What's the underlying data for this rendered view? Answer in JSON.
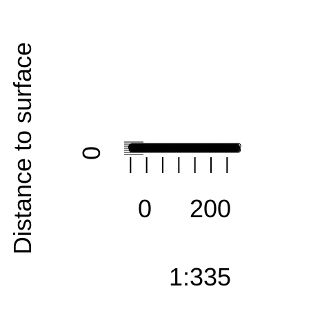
{
  "chart_data": {
    "type": "scatter",
    "ylabel": "Distance to surface",
    "xlabel": "1:335",
    "xlim": [
      -20,
      400
    ],
    "ylim": [
      -1,
      1
    ],
    "x_ticks": [
      0,
      50,
      100,
      150,
      200,
      250,
      300
    ],
    "x_tick_labels": [
      "0",
      "200"
    ],
    "y_tick_labels": [
      "0"
    ],
    "n_points": 335,
    "y_value": 0,
    "colors": {
      "ink": "#000000",
      "background": "#ffffff"
    }
  }
}
